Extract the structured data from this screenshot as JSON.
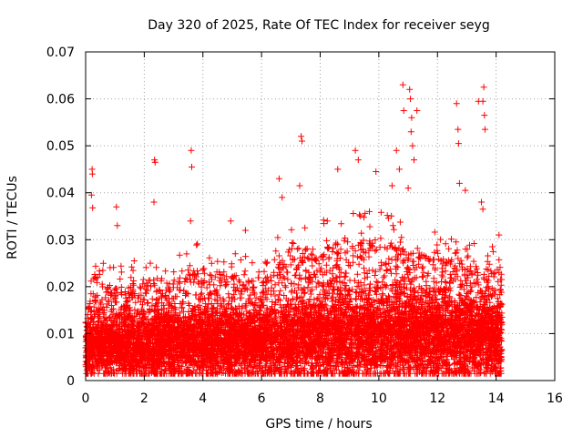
{
  "chart_data": {
    "type": "scatter",
    "title": "Day 320 of 2025, Rate Of TEC Index for receiver seyg",
    "xlabel": "GPS time / hours",
    "ylabel": "ROTI / TECUs",
    "xlim": [
      0,
      16
    ],
    "ylim": [
      0,
      0.07
    ],
    "x_ticks": [
      0,
      2,
      4,
      6,
      8,
      10,
      12,
      14,
      16
    ],
    "x_tick_labels": [
      "0",
      "2",
      "4",
      "6",
      "8",
      "10",
      "12",
      "14",
      "16"
    ],
    "y_ticks": [
      0,
      0.01,
      0.02,
      0.03,
      0.04,
      0.05,
      0.06,
      0.07
    ],
    "y_tick_labels": [
      "0",
      "0.01",
      "0.02",
      "0.03",
      "0.04",
      "0.05",
      "0.06",
      "0.07"
    ],
    "grid": true,
    "marker": "+",
    "colors": {
      "points": "#ff0000",
      "grid": "#a0a0a0",
      "axis": "#000000"
    },
    "series": [
      {
        "name": "ROTI",
        "data_extent_hours": [
          0,
          14.2
        ],
        "notable_points": [
          {
            "x": 0.22,
            "y": 0.045
          },
          {
            "x": 0.23,
            "y": 0.044
          },
          {
            "x": 0.2,
            "y": 0.0395
          },
          {
            "x": 0.24,
            "y": 0.0368
          },
          {
            "x": 1.05,
            "y": 0.037
          },
          {
            "x": 1.08,
            "y": 0.033
          },
          {
            "x": 2.35,
            "y": 0.047
          },
          {
            "x": 2.37,
            "y": 0.0465
          },
          {
            "x": 2.33,
            "y": 0.038
          },
          {
            "x": 3.6,
            "y": 0.049
          },
          {
            "x": 3.62,
            "y": 0.0455
          },
          {
            "x": 3.58,
            "y": 0.034
          },
          {
            "x": 4.95,
            "y": 0.034
          },
          {
            "x": 5.45,
            "y": 0.032
          },
          {
            "x": 6.6,
            "y": 0.043
          },
          {
            "x": 6.7,
            "y": 0.039
          },
          {
            "x": 7.35,
            "y": 0.052
          },
          {
            "x": 7.38,
            "y": 0.051
          },
          {
            "x": 7.3,
            "y": 0.0415
          },
          {
            "x": 8.6,
            "y": 0.045
          },
          {
            "x": 9.2,
            "y": 0.049
          },
          {
            "x": 9.3,
            "y": 0.047
          },
          {
            "x": 9.9,
            "y": 0.0445
          },
          {
            "x": 10.45,
            "y": 0.0415
          },
          {
            "x": 10.6,
            "y": 0.049
          },
          {
            "x": 10.7,
            "y": 0.045
          },
          {
            "x": 10.82,
            "y": 0.063
          },
          {
            "x": 10.85,
            "y": 0.0575
          },
          {
            "x": 11.05,
            "y": 0.062
          },
          {
            "x": 11.08,
            "y": 0.06
          },
          {
            "x": 11.12,
            "y": 0.056
          },
          {
            "x": 11.1,
            "y": 0.053
          },
          {
            "x": 11.15,
            "y": 0.05
          },
          {
            "x": 11.2,
            "y": 0.047
          },
          {
            "x": 11.3,
            "y": 0.0575
          },
          {
            "x": 11.0,
            "y": 0.041
          },
          {
            "x": 12.65,
            "y": 0.059
          },
          {
            "x": 12.7,
            "y": 0.0535
          },
          {
            "x": 12.72,
            "y": 0.0505
          },
          {
            "x": 12.75,
            "y": 0.042
          },
          {
            "x": 12.95,
            "y": 0.0405
          },
          {
            "x": 13.4,
            "y": 0.0595
          },
          {
            "x": 13.55,
            "y": 0.0595
          },
          {
            "x": 13.58,
            "y": 0.0625
          },
          {
            "x": 13.6,
            "y": 0.0565
          },
          {
            "x": 13.62,
            "y": 0.0535
          },
          {
            "x": 13.5,
            "y": 0.038
          },
          {
            "x": 13.55,
            "y": 0.0365
          },
          {
            "x": 14.1,
            "y": 0.031
          }
        ],
        "envelope": [
          {
            "x": 0.0,
            "base": 0.006,
            "spread": 0.007,
            "max": 0.016
          },
          {
            "x": 0.3,
            "base": 0.0075,
            "spread": 0.007,
            "max": 0.028
          },
          {
            "x": 1.0,
            "base": 0.007,
            "spread": 0.007,
            "max": 0.024
          },
          {
            "x": 2.0,
            "base": 0.007,
            "spread": 0.008,
            "max": 0.027
          },
          {
            "x": 3.0,
            "base": 0.0075,
            "spread": 0.008,
            "max": 0.026
          },
          {
            "x": 4.0,
            "base": 0.0075,
            "spread": 0.008,
            "max": 0.03
          },
          {
            "x": 5.0,
            "base": 0.0075,
            "spread": 0.008,
            "max": 0.028
          },
          {
            "x": 6.0,
            "base": 0.008,
            "spread": 0.008,
            "max": 0.025
          },
          {
            "x": 7.0,
            "base": 0.0085,
            "spread": 0.0095,
            "max": 0.035
          },
          {
            "x": 8.0,
            "base": 0.009,
            "spread": 0.0095,
            "max": 0.034
          },
          {
            "x": 9.0,
            "base": 0.0095,
            "spread": 0.011,
            "max": 0.038
          },
          {
            "x": 10.0,
            "base": 0.0095,
            "spread": 0.01,
            "max": 0.036
          },
          {
            "x": 11.0,
            "base": 0.009,
            "spread": 0.01,
            "max": 0.034
          },
          {
            "x": 12.0,
            "base": 0.009,
            "spread": 0.0095,
            "max": 0.032
          },
          {
            "x": 13.0,
            "base": 0.009,
            "spread": 0.0095,
            "max": 0.03
          },
          {
            "x": 14.2,
            "base": 0.0085,
            "spread": 0.0095,
            "max": 0.028
          }
        ]
      }
    ]
  }
}
